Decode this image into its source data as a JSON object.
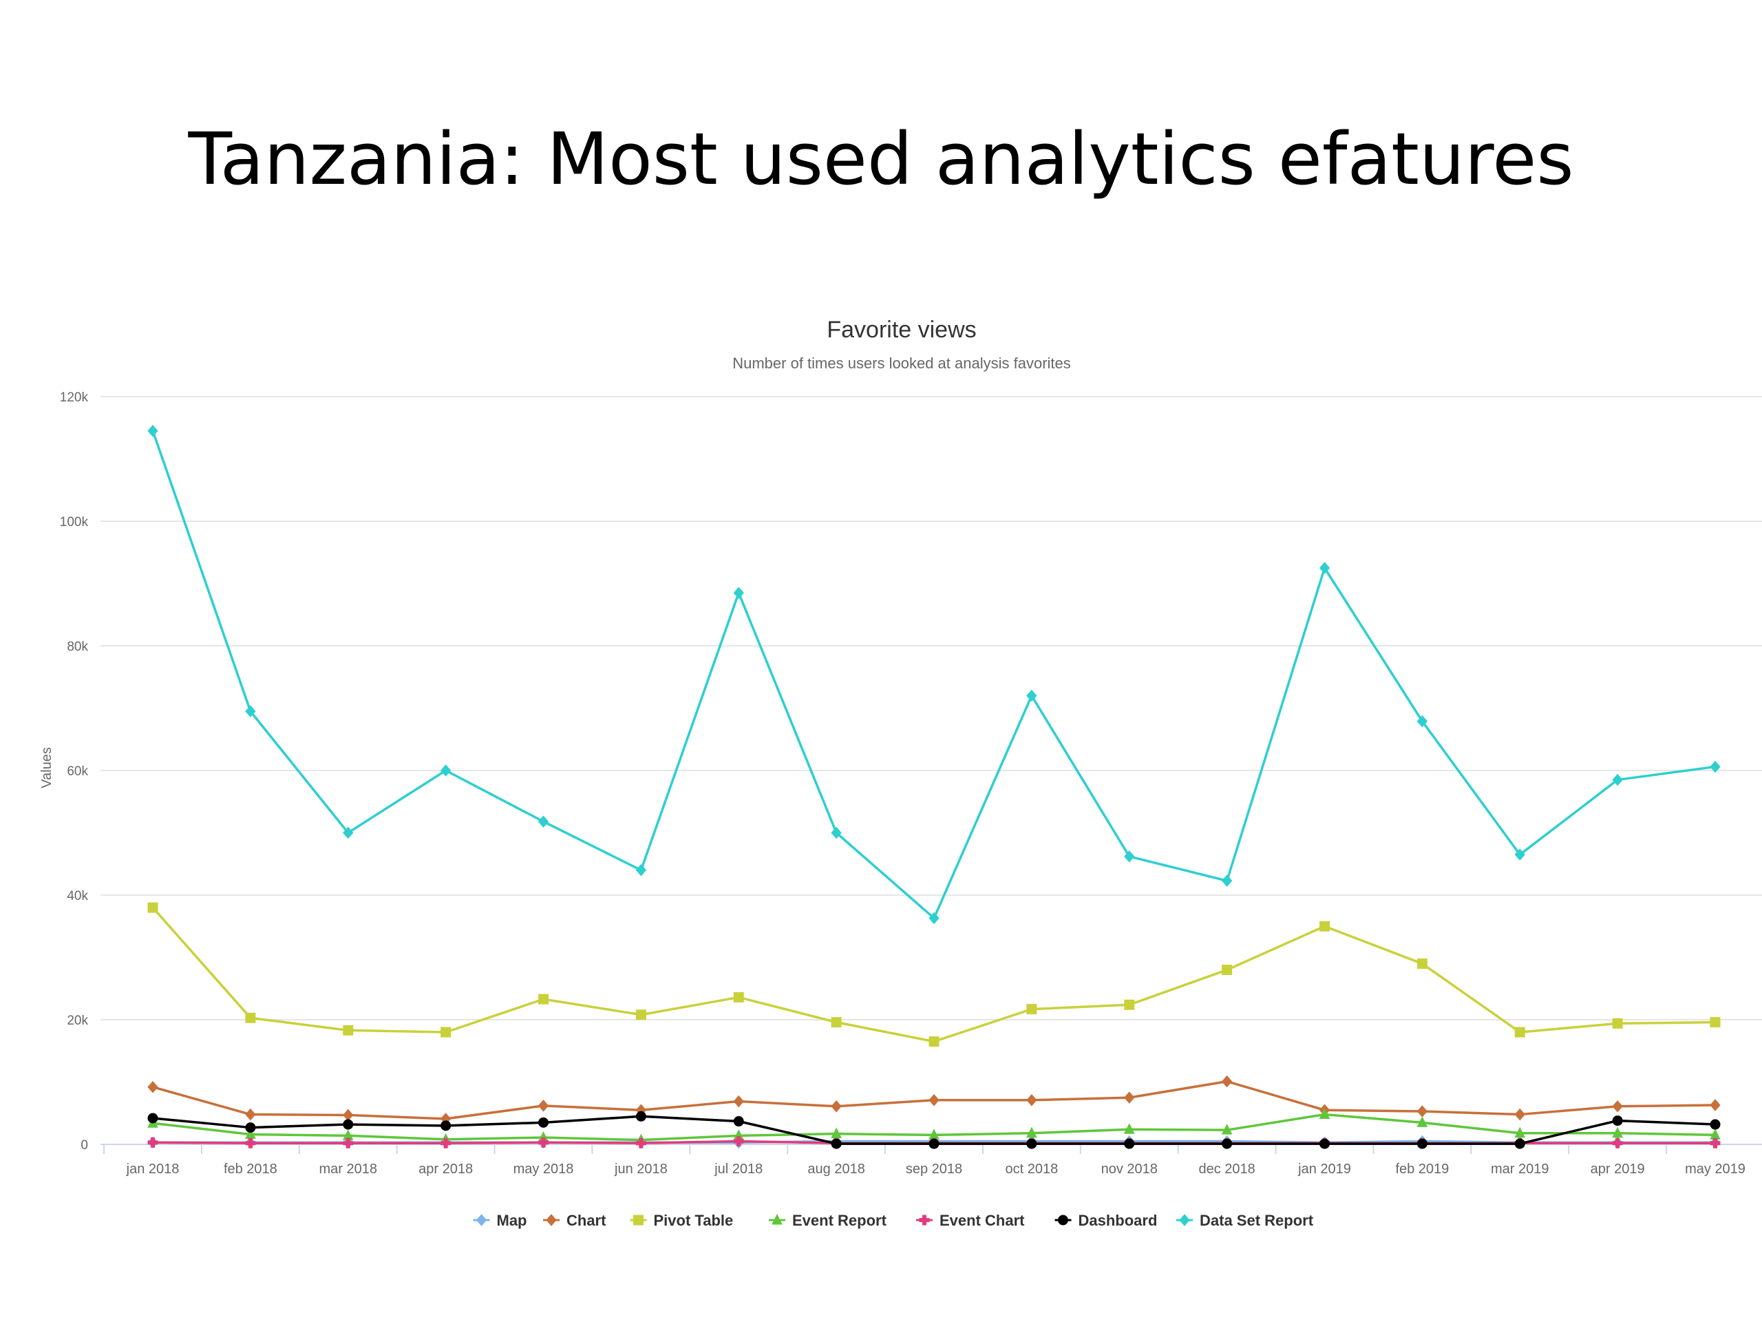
{
  "slide": {
    "title": "Tanzania: Most used analytics efatures"
  },
  "chart_data": {
    "type": "line",
    "title": "Favorite views",
    "subtitle": "Number of times users looked at analysis favorites",
    "xlabel": "",
    "ylabel": "Values",
    "ylim": [
      0,
      120000
    ],
    "yticks": [
      0,
      20000,
      40000,
      60000,
      80000,
      100000,
      120000
    ],
    "ytick_labels": [
      "0",
      "20k",
      "40k",
      "60k",
      "80k",
      "100k",
      "120k"
    ],
    "grid": true,
    "legend_position": "bottom",
    "categories": [
      "jan 2018",
      "feb 2018",
      "mar 2018",
      "apr 2018",
      "may 2018",
      "jun 2018",
      "jul 2018",
      "aug 2018",
      "sep 2018",
      "oct 2018",
      "nov 2018",
      "dec 2018",
      "jan 2019",
      "feb 2019",
      "mar 2019",
      "apr 2019",
      "may 2019"
    ],
    "series": [
      {
        "name": "Map",
        "color": "#7cb5ec",
        "marker": "diamond",
        "values": [
          300,
          300,
          300,
          300,
          300,
          300,
          300,
          500,
          500,
          500,
          500,
          500,
          300,
          500,
          300,
          300,
          300
        ]
      },
      {
        "name": "Chart",
        "color": "#c8703a",
        "marker": "diamond",
        "values": [
          9200,
          4800,
          4700,
          4100,
          6200,
          5500,
          6900,
          6100,
          7100,
          7100,
          7500,
          10100,
          5500,
          5300,
          4800,
          6100,
          6300
        ]
      },
      {
        "name": "Pivot Table",
        "color": "#c9d13a",
        "marker": "square",
        "values": [
          38000,
          20300,
          18300,
          18000,
          23300,
          20800,
          23600,
          19600,
          16500,
          21700,
          22400,
          28000,
          35000,
          29000,
          18000,
          19400,
          19600
        ]
      },
      {
        "name": "Event Report",
        "color": "#5ec73a",
        "marker": "triangle",
        "values": [
          3400,
          1600,
          1400,
          800,
          1100,
          700,
          1400,
          1700,
          1500,
          1800,
          2400,
          2300,
          4800,
          3500,
          1800,
          1800,
          1500
        ]
      },
      {
        "name": "Event Chart",
        "color": "#e23c7e",
        "marker": "cross",
        "values": [
          300,
          200,
          200,
          200,
          300,
          200,
          500,
          200,
          200,
          200,
          200,
          200,
          200,
          200,
          200,
          200,
          200
        ]
      },
      {
        "name": "Dashboard",
        "color": "#000000",
        "marker": "circle",
        "values": [
          4200,
          2700,
          3200,
          3000,
          3500,
          4500,
          3700,
          100,
          100,
          100,
          100,
          100,
          100,
          100,
          100,
          3800,
          3200
        ]
      },
      {
        "name": "Data Set Report",
        "color": "#2ecfd0",
        "marker": "diamond",
        "values": [
          114500,
          69500,
          50000,
          60000,
          51800,
          44000,
          88500,
          50000,
          36300,
          72000,
          46200,
          42300,
          92500,
          67900,
          46500,
          58500,
          60600
        ]
      }
    ]
  }
}
